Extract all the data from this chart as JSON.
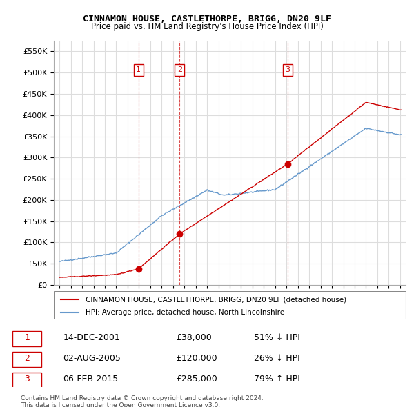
{
  "title": "CINNAMON HOUSE, CASTLETHORPE, BRIGG, DN20 9LF",
  "subtitle": "Price paid vs. HM Land Registry's House Price Index (HPI)",
  "legend_line1": "CINNAMON HOUSE, CASTLETHORPE, BRIGG, DN20 9LF (detached house)",
  "legend_line2": "HPI: Average price, detached house, North Lincolnshire",
  "transactions": [
    {
      "num": 1,
      "date": "14-DEC-2001",
      "price": 38000,
      "hpi_pct": "51% ↓ HPI",
      "year": 2001.96
    },
    {
      "num": 2,
      "date": "02-AUG-2005",
      "price": 120000,
      "hpi_pct": "26% ↓ HPI",
      "year": 2005.58
    },
    {
      "num": 3,
      "date": "06-FEB-2015",
      "price": 285000,
      "hpi_pct": "79% ↑ HPI",
      "year": 2015.1
    }
  ],
  "footnote1": "Contains HM Land Registry data © Crown copyright and database right 2024.",
  "footnote2": "This data is licensed under the Open Government Licence v3.0.",
  "ylim": [
    0,
    575000
  ],
  "yticks": [
    0,
    50000,
    100000,
    150000,
    200000,
    250000,
    300000,
    350000,
    400000,
    450000,
    500000,
    550000
  ],
  "xlim_start": 1994.5,
  "xlim_end": 2025.5,
  "line_color_red": "#cc0000",
  "line_color_blue": "#6699cc",
  "background_color": "#ffffff",
  "grid_color": "#dddddd"
}
